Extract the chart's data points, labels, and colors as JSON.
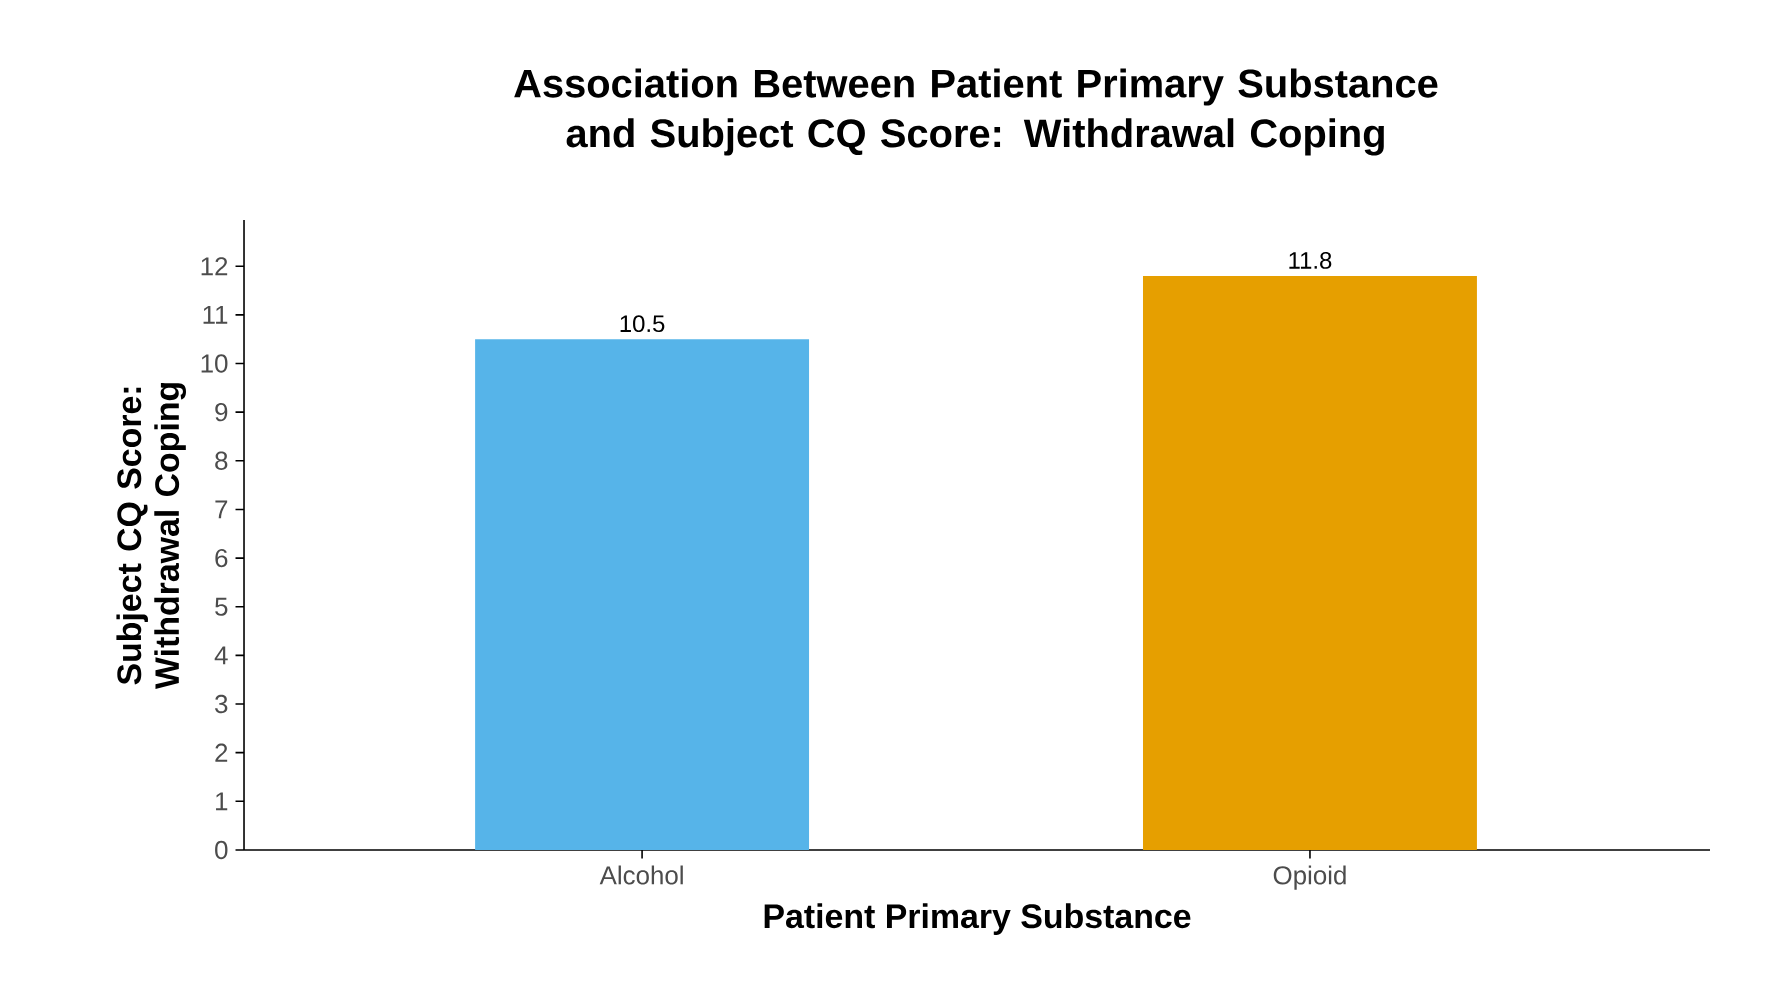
{
  "chart_data": {
    "type": "bar",
    "title": "Association Between Patient Primary Substance and Subject CQ Score: Withdrawal Coping",
    "xlabel": "Patient Primary Substance",
    "ylabel": "Subject CQ Score: Withdrawal Coping",
    "categories": [
      "Alcohol",
      "Opioid"
    ],
    "values": [
      10.5,
      11.8
    ],
    "colors": [
      "#56b4e9",
      "#e69f00"
    ],
    "ylim": [
      0,
      12.95
    ],
    "yticks": [
      0,
      1,
      2,
      3,
      4,
      5,
      6,
      7,
      8,
      9,
      10,
      11,
      12
    ],
    "grid": false,
    "data_labels": true
  }
}
